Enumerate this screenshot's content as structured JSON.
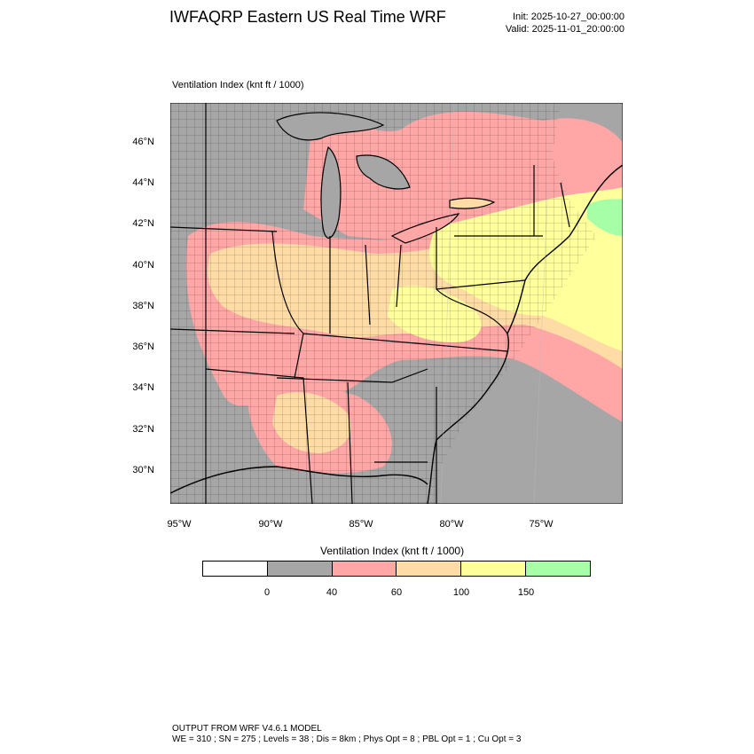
{
  "header": {
    "title": "IWFAQRP Eastern US Real Time WRF",
    "init": "Init: 2025-10-27_00:00:00",
    "valid": "Valid: 2025-11-01_20:00:00"
  },
  "field_title": "Ventilation Index   (knt ft / 1000)",
  "map": {
    "lat_labels": [
      "46°N",
      "44°N",
      "42°N",
      "40°N",
      "38°N",
      "36°N",
      "34°N",
      "32°N",
      "30°N"
    ],
    "lon_labels": [
      "95°W",
      "90°W",
      "85°W",
      "80°W",
      "75°W"
    ]
  },
  "colorbar": {
    "title": "Ventilation Index  (knt ft / 1000)",
    "ticks": [
      "0",
      "40",
      "60",
      "100",
      "150"
    ],
    "colors": [
      "#ffffff",
      "#a6a6a6",
      "#ffa6a6",
      "#ffdca6",
      "#ffff9c",
      "#a6ffa6"
    ]
  },
  "footer": {
    "line1": "OUTPUT FROM WRF V4.6.1 MODEL",
    "line2": "WE = 310 ; SN = 275 ; Levels = 38 ; Dis = 8km ; Phys Opt = 8 ; PBL Opt = 1 ; Cu Opt = 3"
  }
}
